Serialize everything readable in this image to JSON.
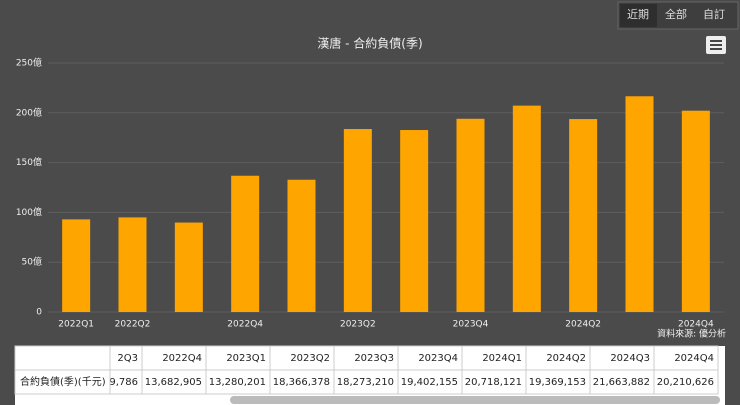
{
  "chart_data": {
    "type": "bar",
    "title": "漢唐 - 合約負債(季)",
    "categories": [
      "2022Q1",
      "2022Q2",
      null,
      "2022Q4",
      null,
      "2023Q2",
      null,
      "2023Q4",
      null,
      "2024Q2",
      null,
      "2024Q4"
    ],
    "values": [
      93,
      95,
      89.8,
      136.8,
      132.8,
      183.7,
      182.7,
      194,
      207.2,
      193.7,
      216.6,
      202.1
    ],
    "color": "#ffa500",
    "ylim": [
      0,
      250
    ],
    "yticks": [
      0,
      {
        "value": 50,
        "label": "50億"
      },
      {
        "value": 100,
        "label": "100億"
      },
      {
        "value": 150,
        "label": "150億"
      },
      {
        "value": 200,
        "label": "200億"
      },
      {
        "value": 250,
        "label": "250億"
      }
    ],
    "grid": true,
    "source": "資料來源: 優分析"
  },
  "buttons": [
    "近期",
    "全部",
    "自訂"
  ],
  "table": {
    "header": [
      "2Q3",
      "2022Q4",
      "2023Q1",
      "2023Q2",
      "2023Q3",
      "2023Q4",
      "2024Q1",
      "2024Q2",
      "2024Q3",
      "2024Q4"
    ],
    "row_label": "合約負債(季)(千元)",
    "row": [
      "9,786",
      "13,682,905",
      "13,280,201",
      "18,366,378",
      "18,273,210",
      "19,402,155",
      "20,718,121",
      "19,369,153",
      "21,663,882",
      "20,210,626"
    ]
  }
}
